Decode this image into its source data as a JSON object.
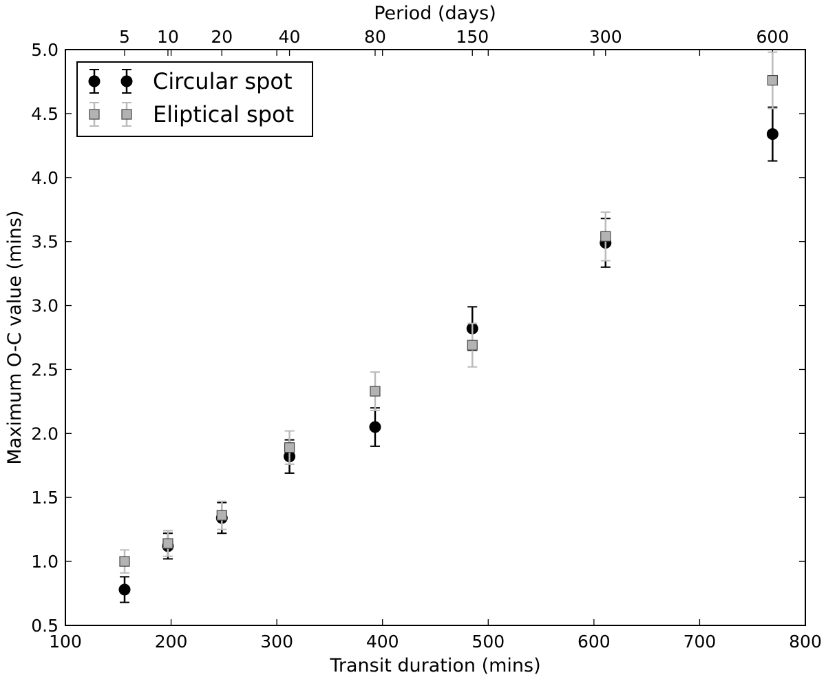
{
  "chart_data": {
    "type": "scatter",
    "title": "",
    "xlabel": "Transit duration (mins)",
    "ylabel": "Maximum O-C value (mins)",
    "top_xlabel": "Period (days)",
    "xlim": [
      100,
      800
    ],
    "ylim": [
      0.5,
      5.0
    ],
    "grid": false,
    "legend_position": "top-left",
    "x_ticks": [
      100,
      200,
      300,
      400,
      500,
      600,
      700,
      800
    ],
    "x_tick_labels": [
      "100",
      "200",
      "300",
      "400",
      "500",
      "600",
      "700",
      "800"
    ],
    "y_ticks": [
      0.5,
      1.0,
      1.5,
      2.0,
      2.5,
      3.0,
      3.5,
      4.0,
      4.5,
      5.0
    ],
    "y_tick_labels": [
      "0.5",
      "1.0",
      "1.5",
      "2.0",
      "2.5",
      "3.0",
      "3.5",
      "4.0",
      "4.5",
      "5.0"
    ],
    "top_ticks": [
      {
        "label": "5",
        "x": 156
      },
      {
        "label": "10",
        "x": 197
      },
      {
        "label": "20",
        "x": 248
      },
      {
        "label": "40",
        "x": 312
      },
      {
        "label": "80",
        "x": 393
      },
      {
        "label": "150",
        "x": 485
      },
      {
        "label": "300",
        "x": 611
      },
      {
        "label": "600",
        "x": 769
      }
    ],
    "series": [
      {
        "name": "Circular spot",
        "marker": "circle",
        "color": "#000000",
        "errorbar_color": "#000000",
        "points": [
          {
            "x": 156,
            "y": 0.78,
            "err": 0.1
          },
          {
            "x": 197,
            "y": 1.12,
            "err": 0.1
          },
          {
            "x": 248,
            "y": 1.34,
            "err": 0.12
          },
          {
            "x": 312,
            "y": 1.82,
            "err": 0.13
          },
          {
            "x": 393,
            "y": 2.05,
            "err": 0.15
          },
          {
            "x": 485,
            "y": 2.82,
            "err": 0.17
          },
          {
            "x": 611,
            "y": 3.49,
            "err": 0.19
          },
          {
            "x": 769,
            "y": 4.34,
            "err": 0.21
          }
        ]
      },
      {
        "name": "Eliptical spot",
        "marker": "square",
        "color": "#b3b3b3",
        "errorbar_color": "#bbbbbb",
        "points": [
          {
            "x": 156,
            "y": 1.0,
            "err": 0.09
          },
          {
            "x": 197,
            "y": 1.14,
            "err": 0.1
          },
          {
            "x": 248,
            "y": 1.36,
            "err": 0.11
          },
          {
            "x": 312,
            "y": 1.89,
            "err": 0.13
          },
          {
            "x": 393,
            "y": 2.33,
            "err": 0.15
          },
          {
            "x": 485,
            "y": 2.69,
            "err": 0.17
          },
          {
            "x": 611,
            "y": 3.54,
            "err": 0.19
          },
          {
            "x": 769,
            "y": 4.76,
            "err": 0.22
          }
        ]
      }
    ]
  }
}
